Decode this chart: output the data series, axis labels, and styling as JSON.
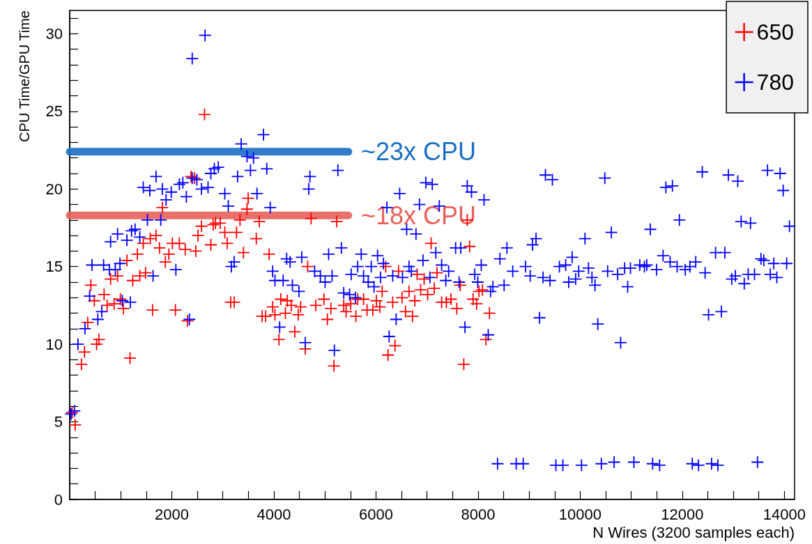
{
  "chart_data": {
    "type": "scatter",
    "xlabel": "N Wires (3200 samples each)",
    "ylabel": "CPU Time/GPU Time",
    "xlim": [
      0,
      14200
    ],
    "xticks": [
      {
        "value": 500,
        "label": null
      },
      {
        "value": 1000,
        "label": null
      },
      {
        "value": 1500,
        "label": null
      },
      2000,
      {
        "value": 2500,
        "label": null
      },
      {
        "value": 3000,
        "label": null
      },
      {
        "value": 3500,
        "label": null
      },
      4000,
      {
        "value": 4500,
        "label": null
      },
      {
        "value": 5000,
        "label": null
      },
      {
        "value": 5500,
        "label": null
      },
      6000,
      {
        "value": 6500,
        "label": null
      },
      {
        "value": 7000,
        "label": null
      },
      {
        "value": 7500,
        "label": null
      },
      8000,
      {
        "value": 8500,
        "label": null
      },
      {
        "value": 9000,
        "label": null
      },
      {
        "value": 9500,
        "label": null
      },
      10000,
      {
        "value": 10500,
        "label": null
      },
      {
        "value": 11000,
        "label": null
      },
      {
        "value": 11500,
        "label": null
      },
      12000,
      {
        "value": 12500,
        "label": null
      },
      {
        "value": 13000,
        "label": null
      },
      {
        "value": 13500,
        "label": null
      },
      14000
    ],
    "ylim": [
      0,
      31.5
    ],
    "yticks": [
      0,
      {
        "value": 1,
        "label": null
      },
      {
        "value": 2,
        "label": null
      },
      {
        "value": 3,
        "label": null
      },
      {
        "value": 4,
        "label": null
      },
      5,
      {
        "value": 6,
        "label": null
      },
      {
        "value": 7,
        "label": null
      },
      {
        "value": 8,
        "label": null
      },
      {
        "value": 9,
        "label": null
      },
      10,
      {
        "value": 11,
        "label": null
      },
      {
        "value": 12,
        "label": null
      },
      {
        "value": 13,
        "label": null
      },
      {
        "value": 14,
        "label": null
      },
      15,
      {
        "value": 16,
        "label": null
      },
      {
        "value": 17,
        "label": null
      },
      {
        "value": 18,
        "label": null
      },
      {
        "value": 19,
        "label": null
      },
      20,
      {
        "value": 21,
        "label": null
      },
      {
        "value": 22,
        "label": null
      },
      {
        "value": 23,
        "label": null
      },
      {
        "value": 24,
        "label": null
      },
      25,
      {
        "value": 26,
        "label": null
      },
      {
        "value": 27,
        "label": null
      },
      {
        "value": 28,
        "label": null
      },
      {
        "value": 29,
        "label": null
      },
      30,
      {
        "value": 31,
        "label": null
      }
    ],
    "grid": false,
    "legend": "top right",
    "marker": "cross",
    "series": [
      {
        "name": "650",
        "color": "#ff0000",
        "x": [
          2641,
          2377,
          2445,
          3496,
          1815,
          3473,
          3336,
          3715,
          2582,
          2856,
          2948,
          2514,
          2811,
          3039,
          3268,
          3085,
          3655,
          1692,
          1578,
          1441,
          2011,
          2148,
          2263,
          2469,
          2765,
          1760,
          1326,
          1943,
          1121,
          1874,
          3404,
          3907,
          4661,
          414,
          482,
          674,
          733,
          870,
          993,
          1052,
          801,
          938,
          1236,
          1373,
          1486,
          353,
          573,
          527,
          290,
          230,
          1181,
          1623,
          2071,
          2308,
          3154,
          3222,
          48,
          107,
          3976,
          4135,
          4263,
          4340,
          4524,
          3770,
          3839,
          4021,
          4226,
          4477,
          4409,
          4099,
          4614,
          4729,
          5231,
          7788,
          7080,
          7834,
          6190,
          6442,
          6806,
          7195,
          6943,
          6121,
          6647,
          6875,
          7141,
          7012,
          7651,
          8086,
          8017,
          4980,
          4820,
          5117,
          5368,
          5505,
          5642,
          5757,
          5414,
          5606,
          5825,
          6008,
          5939,
          6076,
          6327,
          6510,
          6761,
          6579,
          6716,
          7286,
          7378,
          7469,
          7583,
          7902,
          7971,
          8223,
          5048,
          6373,
          6236,
          8154,
          5176,
          7720
        ],
        "values": [
          24.8,
          20.8,
          20.7,
          19.4,
          18.8,
          18.7,
          18.0,
          17.9,
          17.6,
          17.8,
          17.8,
          17.0,
          17.7,
          17.2,
          17.2,
          16.5,
          16.8,
          17.0,
          16.8,
          16.5,
          16.5,
          16.5,
          16.1,
          16.0,
          16.4,
          16.2,
          15.8,
          15.8,
          15.4,
          15.3,
          15.9,
          15.8,
          15.0,
          13.8,
          12.8,
          13.2,
          12.5,
          12.6,
          12.9,
          12.3,
          14.2,
          14.4,
          14.1,
          14.4,
          14.6,
          11.4,
          10.3,
          10.0,
          9.5,
          8.7,
          9.1,
          12.2,
          12.2,
          11.5,
          12.7,
          12.7,
          5.6,
          4.8,
          12.4,
          12.9,
          12.8,
          12.5,
          12.4,
          11.8,
          11.8,
          11.9,
          12.0,
          11.9,
          10.8,
          10.3,
          9.7,
          18.1,
          17.9,
          18.0,
          16.5,
          16.3,
          15.0,
          14.7,
          14.5,
          14.6,
          14.2,
          13.4,
          13.4,
          13.5,
          13.6,
          13.2,
          13.8,
          13.5,
          13.4,
          12.9,
          12.5,
          12.3,
          12.5,
          12.6,
          12.9,
          12.9,
          12.1,
          11.8,
          12.2,
          12.8,
          12.2,
          12.4,
          12.7,
          13.0,
          12.8,
          12.1,
          11.8,
          12.7,
          12.7,
          12.9,
          12.3,
          12.9,
          12.6,
          12.0,
          11.6,
          9.9,
          9.3,
          10.3,
          8.6,
          8.7
        ]
      },
      {
        "name": "780",
        "color": "#0000ff",
        "x": [
          2651,
          2400,
          3797,
          3359,
          3473,
          3600,
          2911,
          2833,
          2765,
          3541,
          3861,
          3290,
          1692,
          2491,
          2400,
          1441,
          1569,
          1815,
          1989,
          2149,
          2217,
          2285,
          2582,
          2710,
          3039,
          3669,
          3107,
          1888,
          3929,
          4706,
          4683,
          1523,
          1784,
          1281,
          1212,
          938,
          801,
          1121,
          1373,
          436,
          664,
          778,
          893,
          984,
          1633,
          2080,
          3167,
          3222,
          3976,
          4250,
          4318,
          4546,
          390,
          299,
          551,
          628,
          162,
          93,
          25,
          1030,
          1189,
          2345,
          4021,
          4181,
          4363,
          4491,
          4113,
          4614,
          5254,
          6976,
          7103,
          6464,
          7788,
          7871,
          6852,
          7240,
          6213,
          8117,
          6601,
          6784,
          9319,
          9456,
          5322,
          5072,
          5711,
          6031,
          6921,
          7172,
          7560,
          7661,
          8565,
          9135,
          9067,
          8428,
          8062,
          5642,
          5907,
          6145,
          6647,
          7286,
          7423,
          4798,
          4911,
          5003,
          5140,
          5514,
          5757,
          5848,
          5962,
          6090,
          6327,
          6519,
          6692,
          7058,
          7368,
          7628,
          7935,
          7994,
          8291,
          8245,
          8510,
          8679,
          8930,
          9021,
          9272,
          9409,
          5368,
          5483,
          5597,
          6395,
          7743,
          9204,
          6258,
          8199,
          5185,
          10483,
          12392,
          12903,
          13087,
          13670,
          13917,
          13977,
          11679,
          11807,
          11944,
          13154,
          13337,
          14100,
          10094,
          10611,
          11374,
          11624,
          12652,
          12834,
          9843,
          9593,
          9716,
          9971,
          10163,
          10231,
          10291,
          9775,
          9912,
          10538,
          10734,
          10871,
          10985,
          11168,
          11259,
          11305,
          11497,
          11762,
          11899,
          12059,
          12149,
          12264,
          12447,
          10930,
          12971,
          13040,
          13214,
          13292,
          13415,
          13542,
          13597,
          13793,
          13724,
          13853,
          14045,
          12515,
          12766,
          10346,
          10793,
          8382,
          8747,
          8884,
          9524,
          9661,
          10026,
          10415,
          10665,
          11053,
          11419,
          11556,
          12196,
          12319,
          12574,
          12697,
          13474
        ],
        "values": [
          29.9,
          28.4,
          23.5,
          22.9,
          22.1,
          22.0,
          21.4,
          21.3,
          21.0,
          21.2,
          21.3,
          20.8,
          20.8,
          20.6,
          20.7,
          20.1,
          19.9,
          20.0,
          19.8,
          20.3,
          20.4,
          19.5,
          20.0,
          20.1,
          19.7,
          19.7,
          18.9,
          19.3,
          18.8,
          20.8,
          20.0,
          18.0,
          18.0,
          17.4,
          17.3,
          17.1,
          16.6,
          16.7,
          16.9,
          15.1,
          15.1,
          14.8,
          14.8,
          15.2,
          14.4,
          14.8,
          15.0,
          15.3,
          14.7,
          15.5,
          15.3,
          15.6,
          13.1,
          11.0,
          11.6,
          12.1,
          10.0,
          5.7,
          5.5,
          12.8,
          12.7,
          11.6,
          14.1,
          14.1,
          13.8,
          13.4,
          11.1,
          10.1,
          21.2,
          20.4,
          20.3,
          19.7,
          20.2,
          19.8,
          19.0,
          18.9,
          18.8,
          19.3,
          17.4,
          17.1,
          20.9,
          20.6,
          16.2,
          15.8,
          15.8,
          15.7,
          15.4,
          15.9,
          16.2,
          16.2,
          16.2,
          16.8,
          16.4,
          15.5,
          15.1,
          15.0,
          15.0,
          15.2,
          15.0,
          15.1,
          14.7,
          14.7,
          14.4,
          14.0,
          14.4,
          14.5,
          14.4,
          14.0,
          13.7,
          14.3,
          14.4,
          14.3,
          14.7,
          14.3,
          14.1,
          14.0,
          14.5,
          14.0,
          13.7,
          13.4,
          13.8,
          14.7,
          15.0,
          14.4,
          14.3,
          14.1,
          13.3,
          13.2,
          13.0,
          11.6,
          11.1,
          11.7,
          10.5,
          10.6,
          9.6,
          20.7,
          21.1,
          20.9,
          20.5,
          21.2,
          21.0,
          19.9,
          20.1,
          20.2,
          18.0,
          17.9,
          17.8,
          17.6,
          16.8,
          17.2,
          17.4,
          15.7,
          15.9,
          15.9,
          15.6,
          15.0,
          15.1,
          14.7,
          14.9,
          14.3,
          13.8,
          14.0,
          14.2,
          14.7,
          14.5,
          14.9,
          14.9,
          15.1,
          15.0,
          15.1,
          14.8,
          15.3,
          15.0,
          14.8,
          15.0,
          15.3,
          14.6,
          13.7,
          14.2,
          14.4,
          13.9,
          14.5,
          14.5,
          15.5,
          15.4,
          15.2,
          14.5,
          14.3,
          15.2,
          11.9,
          12.1,
          11.3,
          10.1,
          2.3,
          2.3,
          2.3,
          2.2,
          2.2,
          2.2,
          2.3,
          2.4,
          2.4,
          2.3,
          2.2,
          2.3,
          2.2,
          2.3,
          2.2,
          2.4
        ]
      },
      {
        "name": "~23x CPU",
        "color": "#1a6fc4",
        "type": "line",
        "marker": "none",
        "x": [
          0,
          5460
        ],
        "values": [
          22.4,
          22.4
        ]
      },
      {
        "name": "~18x CPU",
        "color": "#e8605a",
        "type": "line",
        "marker": "none",
        "x": [
          0,
          5460
        ],
        "values": [
          18.3,
          18.3
        ]
      }
    ]
  }
}
